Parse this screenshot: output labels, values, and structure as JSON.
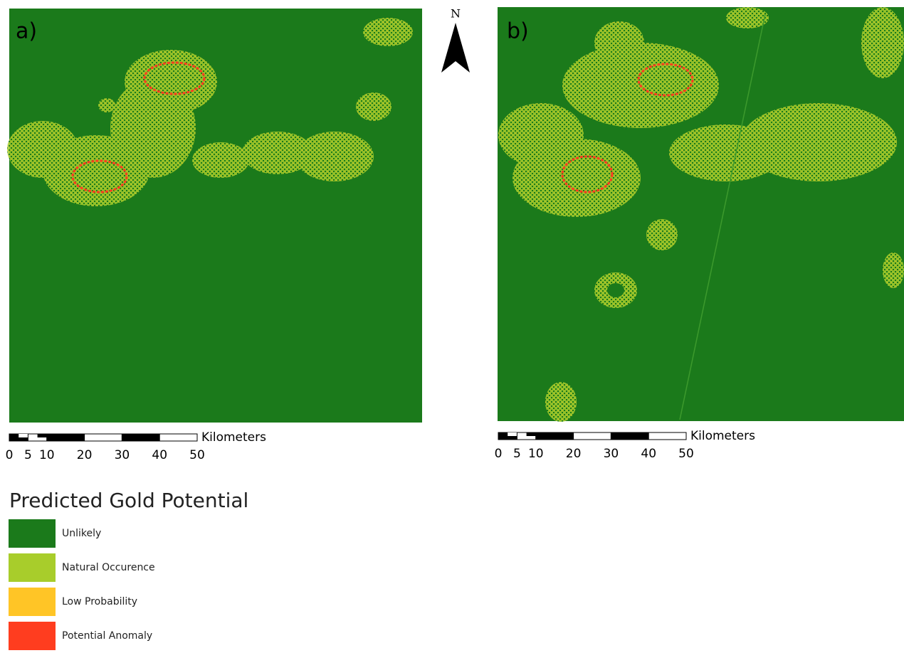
{
  "panels": [
    {
      "label": "a)"
    },
    {
      "label": "b)"
    }
  ],
  "north_arrow": {
    "label": "N"
  },
  "scale_bar": {
    "unit": "Kilometers",
    "ticks": [
      0,
      5,
      10,
      20,
      30,
      40,
      50
    ]
  },
  "legend": {
    "title": "Predicted Gold Potential",
    "items": [
      {
        "label": "Unlikely",
        "color": "#1b7a1b"
      },
      {
        "label": "Natural Occurence",
        "color": "#a8cd2b"
      },
      {
        "label": "Low Probability",
        "color": "#ffc526"
      },
      {
        "label": "Potential Anomaly",
        "color": "#ff3d1f"
      }
    ]
  }
}
